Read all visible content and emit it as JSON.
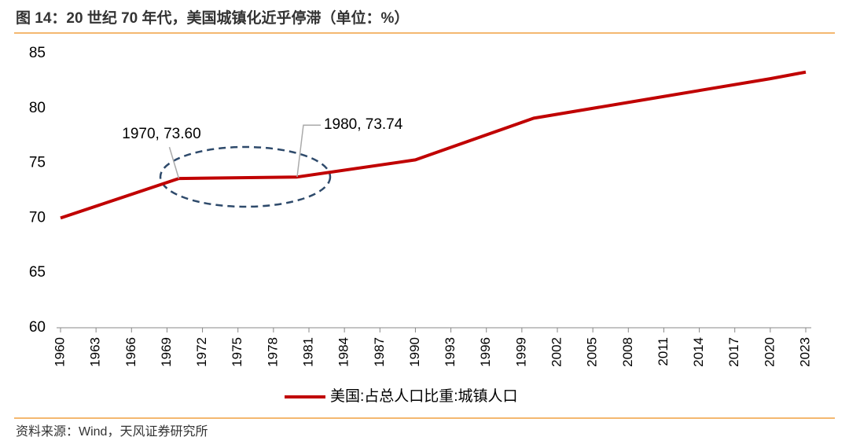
{
  "chart_data": {
    "type": "line",
    "title": "图 14：20 世纪 70 年代，美国城镇化近乎停滞（单位：%）",
    "source": "资料来源：Wind，天风证券研究所",
    "x": [
      1960,
      1970,
      1980,
      1990,
      2000,
      2010,
      2020,
      2023
    ],
    "series": [
      {
        "name": "美国:占总人口比重:城镇人口",
        "color": "#c00000",
        "values": [
          70.0,
          73.6,
          73.74,
          75.3,
          79.1,
          80.9,
          82.7,
          83.3
        ]
      }
    ],
    "annotations": [
      "1970, 73.60",
      "1980, 73.74"
    ],
    "xlim": [
      1960,
      2023
    ],
    "xticks": [
      1960,
      1963,
      1966,
      1969,
      1972,
      1975,
      1978,
      1981,
      1984,
      1987,
      1990,
      1993,
      1996,
      1999,
      2002,
      2005,
      2008,
      2011,
      2014,
      2017,
      2020,
      2023
    ],
    "ylim": [
      60,
      85
    ],
    "yticks": [
      60,
      65,
      70,
      75,
      80,
      85
    ],
    "grid": false,
    "legend": "bottom"
  }
}
